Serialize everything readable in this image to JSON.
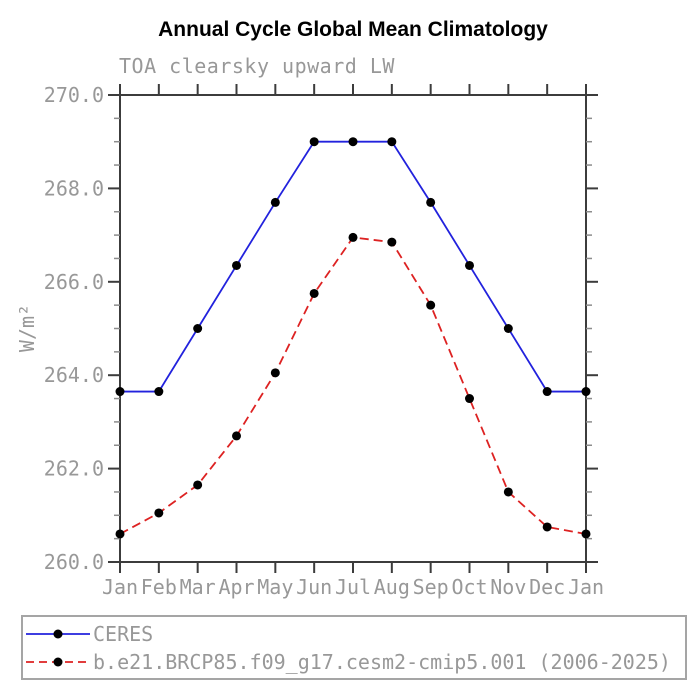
{
  "header": {
    "title": "Annual Cycle Global Mean Climatology",
    "subtitle": "TOA clearsky upward LW"
  },
  "chart_data": {
    "type": "line",
    "title": "Annual Cycle Global Mean Climatology",
    "subtitle": "TOA clearsky upward LW",
    "xlabel": "",
    "ylabel": "W/m²",
    "categories": [
      "Jan",
      "Feb",
      "Mar",
      "Apr",
      "May",
      "Jun",
      "Jul",
      "Aug",
      "Sep",
      "Oct",
      "Nov",
      "Dec",
      "Jan"
    ],
    "ylim": [
      260.0,
      270.0
    ],
    "ytick_major_interval": 2.0,
    "ytick_minor_interval": 0.5,
    "ytick_labels": [
      "260.0",
      "262.0",
      "264.0",
      "266.0",
      "268.0",
      "270.0"
    ],
    "grid": false,
    "legend_position": "bottom",
    "series": [
      {
        "name": "CERES",
        "line_style": "solid",
        "color": "#2222dd",
        "marker": "filled-circle",
        "marker_color": "#000000",
        "values": [
          263.65,
          263.65,
          265.0,
          266.35,
          267.7,
          269.0,
          269.0,
          269.0,
          267.7,
          266.35,
          265.0,
          263.65,
          263.65
        ]
      },
      {
        "name": "b.e21.BRCP85.f09_g17.cesm2-cmip5.001 (2006-2025)",
        "line_style": "dashed",
        "color": "#dd2222",
        "marker": "filled-circle",
        "marker_color": "#000000",
        "values": [
          260.6,
          261.05,
          261.65,
          262.7,
          264.05,
          265.75,
          266.95,
          266.85,
          265.5,
          263.5,
          261.5,
          260.75,
          260.6
        ]
      }
    ]
  },
  "colors": {
    "axis": "#3c3c3c",
    "minor_tick": "#8c8c8c",
    "text_gray": "#989898",
    "legend_border": "#a5a5a5",
    "background": "#ffffff"
  }
}
